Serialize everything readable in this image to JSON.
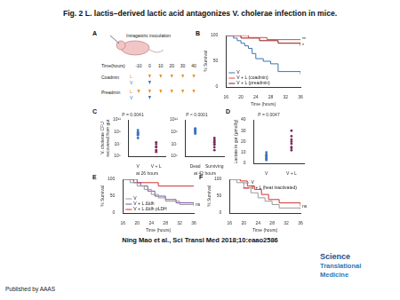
{
  "title": "Fig. 2 L. lactis–derived lactic acid antagonizes V. cholerae infection in mice.",
  "citation": "Ning Mao et al., Sci Transl Med 2018;10:eaao2586",
  "logo": [
    "Science",
    "Translational",
    "Medicine"
  ],
  "publisher": "Published by AAAS",
  "diagram": {
    "panel": "A",
    "caption": "Intragastric inoculation",
    "axis_label": "Time(hours)",
    "ticks": [
      -10,
      0,
      10,
      20,
      30,
      40
    ],
    "rows": [
      {
        "label": "Coadmin",
        "markers": [
          {
            "text": "L",
            "color": "#e8902a",
            "times": [
              0,
              10,
              20,
              30,
              40
            ]
          },
          {
            "text": "V",
            "color": "#3b73b9",
            "times": [
              0
            ]
          }
        ]
      },
      {
        "label": "Preadmin",
        "markers": [
          {
            "text": "L",
            "color": "#e8902a",
            "times": [
              -10,
              0,
              10,
              20,
              30,
              40
            ]
          },
          {
            "text": "V",
            "color": "#3b73b9",
            "times": [
              0
            ]
          }
        ]
      }
    ]
  },
  "chart_data": [
    {
      "panel": "B",
      "type": "line",
      "x_label": "Time (hours)",
      "y_label": "% Survival",
      "xlim": [
        16,
        36
      ],
      "xticks": [
        16,
        20,
        24,
        28,
        32,
        36
      ],
      "ylim": [
        0,
        100
      ],
      "yticks": [
        0,
        50,
        100
      ],
      "grid": false,
      "legend": "bottom-left",
      "line_style": "step",
      "series": [
        {
          "name": "V",
          "color": "#3b73b9",
          "x": [
            16,
            18,
            19,
            20,
            21,
            22,
            23,
            24,
            26,
            28,
            30,
            36
          ],
          "values": [
            100,
            95,
            90,
            85,
            80,
            75,
            65,
            55,
            50,
            45,
            30,
            25
          ]
        },
        {
          "name": "V + L (coadmin)",
          "color": "#e8433a",
          "x": [
            16,
            22,
            27,
            36
          ],
          "values": [
            100,
            96,
            92,
            92
          ]
        },
        {
          "name": "V + L (preadmin)",
          "color": "#8b1a1a",
          "x": [
            16,
            20,
            25,
            30,
            36
          ],
          "values": [
            100,
            95,
            90,
            85,
            80
          ]
        }
      ],
      "annotations": [
        {
          "series": "V + L (coadmin)",
          "text": "**"
        },
        {
          "series": "V + L (preadmin)",
          "text": "*"
        }
      ]
    },
    {
      "panel": "C",
      "type": "scatter",
      "title": "P = 0.0041",
      "x_label": "at 26 hours",
      "y_label": [
        "V. cholerae CFU",
        "recovered from gut"
      ],
      "log": "y",
      "ylim": [
        100000,
        100000000000
      ],
      "yticks": [
        {
          "value": 100000,
          "label": "10⁵"
        },
        {
          "value": 10000000,
          "label": "10⁷"
        },
        {
          "value": 1000000000,
          "label": "10⁹"
        },
        {
          "value": 100000000000,
          "label": "10¹¹"
        }
      ],
      "grid": false,
      "categories": [
        "V",
        "V + L"
      ],
      "colors": [
        "#3b73b9",
        "#7b2d5e"
      ],
      "values": [
        [
          300000000,
          1000000000,
          500000000,
          2000000000,
          100000000,
          400000000,
          800000000
        ],
        [
          1000000,
          3000000,
          500000,
          20000000,
          10000000,
          4000000
        ]
      ]
    },
    {
      "type": "scatter",
      "title": "P < 0.0001",
      "x_label": "at 42 hours",
      "log": "y",
      "ylim": [
        100000,
        100000000000
      ],
      "yticks": [
        {
          "value": 100000,
          "label": "10⁵"
        },
        {
          "value": 10000000,
          "label": "10⁷"
        },
        {
          "value": 1000000000,
          "label": "10⁹"
        },
        {
          "value": 100000000000,
          "label": "10¹¹"
        }
      ],
      "grid": false,
      "categories": [
        "Dead",
        "Surviving"
      ],
      "colors": [
        "#3b73b9",
        "#7b2d5e"
      ],
      "values": [
        [
          1000000000,
          3000000000,
          500000000,
          2000000000,
          800000000,
          1500000000,
          4000000000
        ],
        [
          10000000,
          3000000,
          50000000,
          20000000,
          1000000,
          8000000,
          30000000,
          100000000
        ]
      ]
    },
    {
      "panel": "D",
      "type": "scatter",
      "title": "P = 0.0047",
      "y_label": "Lactate in gut (μmol/g)",
      "ylim": [
        0,
        40
      ],
      "yticks": [
        0,
        10,
        20,
        30,
        40
      ],
      "grid": false,
      "categories": [
        "V",
        "V + L"
      ],
      "colors": [
        "#3b73b9",
        "#7b2d5e"
      ],
      "values": [
        [
          3,
          5,
          6,
          8,
          10,
          4,
          7
        ],
        [
          12,
          15,
          20,
          25,
          30,
          14,
          18,
          22
        ]
      ]
    },
    {
      "panel": "E",
      "type": "line",
      "x_label": "Time (hours)",
      "y_label": "% Survival",
      "xlim": [
        16,
        36
      ],
      "xticks": [
        16,
        20,
        24,
        28,
        32,
        36
      ],
      "ylim": [
        0,
        100
      ],
      "yticks": [
        0,
        50,
        100
      ],
      "grid": false,
      "legend": "bottom-left",
      "line_style": "step",
      "series": [
        {
          "name": "V",
          "color": "#999999",
          "x": [
            16,
            18,
            20,
            22,
            24,
            26,
            28,
            32,
            36
          ],
          "values": [
            100,
            90,
            80,
            70,
            55,
            45,
            35,
            25,
            20
          ]
        },
        {
          "name": "V + L Δldh",
          "color": "#7b4fa0",
          "x": [
            16,
            19,
            21,
            23,
            25,
            28,
            31,
            36
          ],
          "values": [
            100,
            90,
            80,
            65,
            50,
            40,
            30,
            25
          ]
        },
        {
          "name": "V + L Δldh pLDH",
          "color": "#d62f2f",
          "x": [
            16,
            20,
            26,
            36
          ],
          "values": [
            100,
            90,
            80,
            80
          ]
        }
      ],
      "annotations": [
        {
          "series": "V + L Δldh",
          "text": "ns"
        }
      ]
    },
    {
      "panel": "F",
      "type": "line",
      "x_label": "Time (hours)",
      "y_label": "% Survival",
      "xlim": [
        16,
        36
      ],
      "xticks": [
        16,
        20,
        24,
        28,
        32,
        36
      ],
      "ylim": [
        0,
        100
      ],
      "yticks": [
        0,
        50,
        100
      ],
      "grid": false,
      "legend": "top-right",
      "line_style": "step",
      "series": [
        {
          "name": "V",
          "color": "#999999",
          "x": [
            16,
            18,
            20,
            22,
            24,
            26,
            28,
            30,
            36
          ],
          "values": [
            100,
            90,
            75,
            60,
            45,
            35,
            25,
            15,
            10
          ]
        },
        {
          "name": "V + L (heat inactivated)",
          "color": "#d62f2f",
          "x": [
            16,
            19,
            21,
            23,
            25,
            27,
            30,
            36
          ],
          "values": [
            100,
            95,
            80,
            70,
            55,
            40,
            30,
            20
          ]
        }
      ],
      "annotations": [
        {
          "series": "V + L (heat inactivated)",
          "text": "ns"
        }
      ]
    }
  ]
}
